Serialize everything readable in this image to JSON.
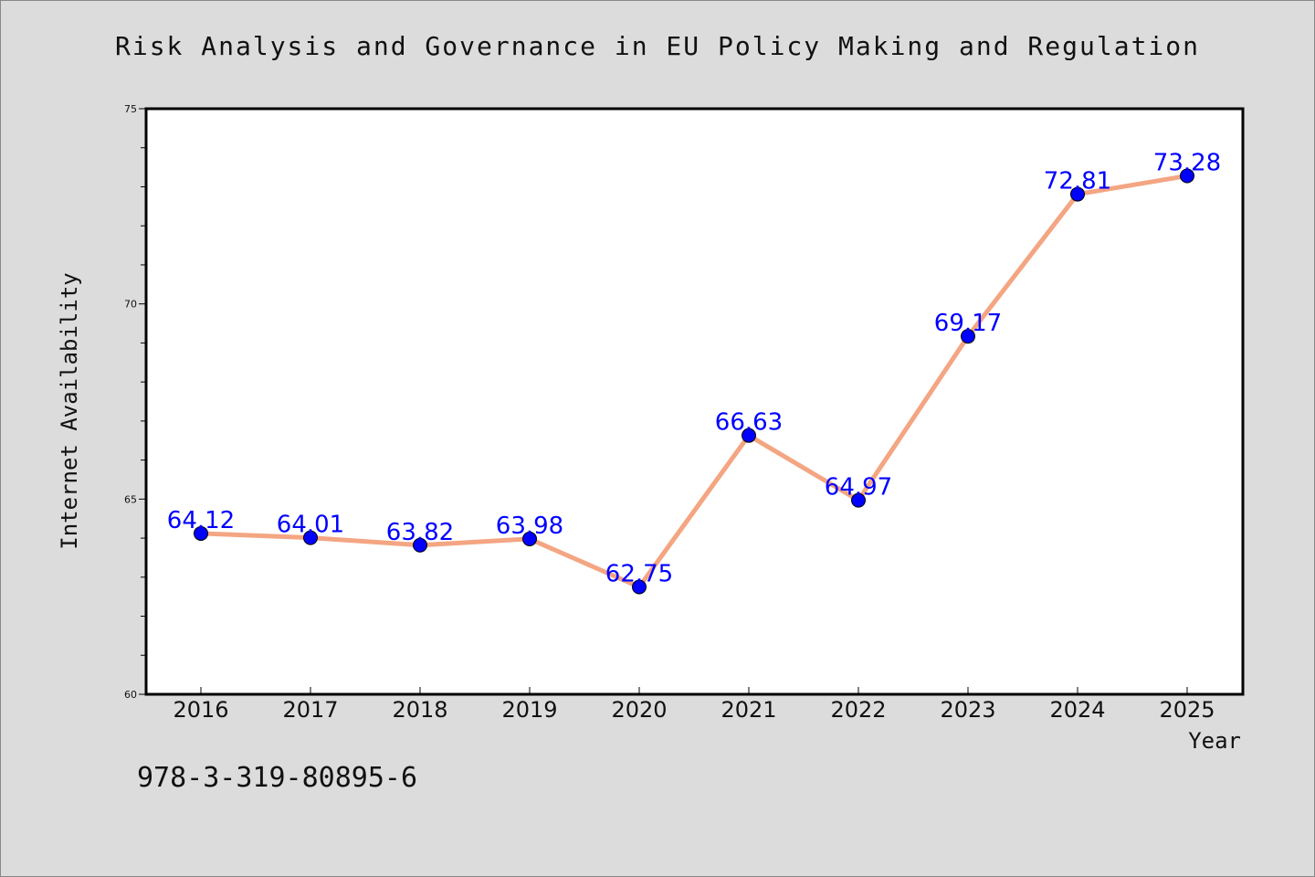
{
  "colors": {
    "background": "#dcdcdc",
    "plot_background": "#ffffff",
    "line": "#f4a582",
    "marker": "#0000ff",
    "data_label": "#0000ff",
    "text": "#111111"
  },
  "footer": {
    "isbn": "978-3-319-80895-6"
  },
  "chart_data": {
    "type": "line",
    "title": "Risk Analysis and Governance in EU Policy Making and Regulation",
    "xlabel": "Year",
    "ylabel": "Internet Availability",
    "x": [
      "2016",
      "2017",
      "2018",
      "2019",
      "2020",
      "2021",
      "2022",
      "2023",
      "2024",
      "2025"
    ],
    "series": [
      {
        "values": [
          64.12,
          64.01,
          63.82,
          63.98,
          62.75,
          66.63,
          64.97,
          69.17,
          72.81,
          73.28
        ],
        "labels": [
          "64.12",
          "64.01",
          "63.82",
          "63.98",
          "62.75",
          "66.63",
          "64.97",
          "69.17",
          "72.81",
          "73.28"
        ]
      }
    ],
    "ylim": [
      60,
      75
    ],
    "yticks": [
      60,
      65,
      70,
      75
    ],
    "ytick_labels": [
      "60",
      "65",
      "70",
      "75"
    ],
    "yminor_step": 1,
    "grid": false,
    "legend": "none"
  }
}
